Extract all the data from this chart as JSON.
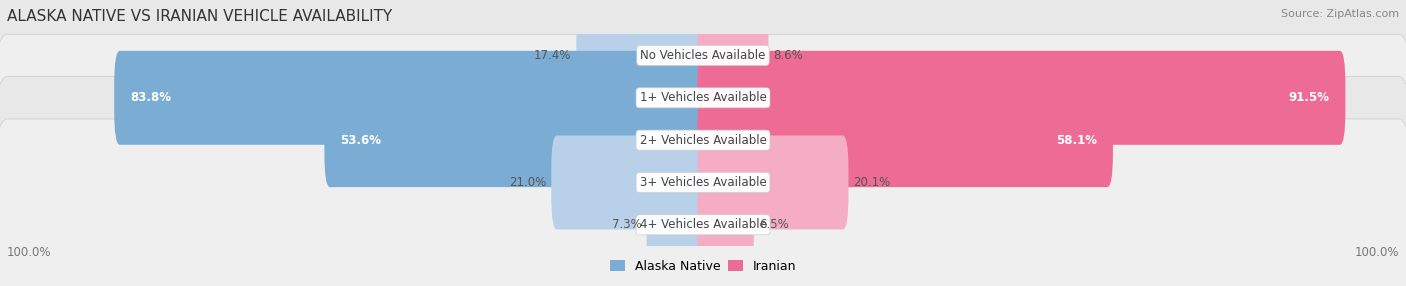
{
  "title": "ALASKA NATIVE VS IRANIAN VEHICLE AVAILABILITY",
  "source": "Source: ZipAtlas.com",
  "categories": [
    "No Vehicles Available",
    "1+ Vehicles Available",
    "2+ Vehicles Available",
    "3+ Vehicles Available",
    "4+ Vehicles Available"
  ],
  "alaska_values": [
    17.4,
    83.8,
    53.6,
    21.0,
    7.3
  ],
  "iranian_values": [
    8.6,
    91.5,
    58.1,
    20.1,
    6.5
  ],
  "alaska_color_dark": "#7badd4",
  "alaska_color_light": "#b8d0e8",
  "iranian_color_dark": "#ee6b96",
  "iranian_color_light": "#f5adc5",
  "row_bg_even": "#efefef",
  "row_bg_odd": "#e8e8e8",
  "title_fontsize": 11,
  "source_fontsize": 8,
  "value_fontsize": 8.5,
  "label_fontsize": 8.5,
  "legend_fontsize": 9,
  "max_val": 100.0,
  "figsize": [
    14.06,
    2.86
  ],
  "dpi": 100
}
